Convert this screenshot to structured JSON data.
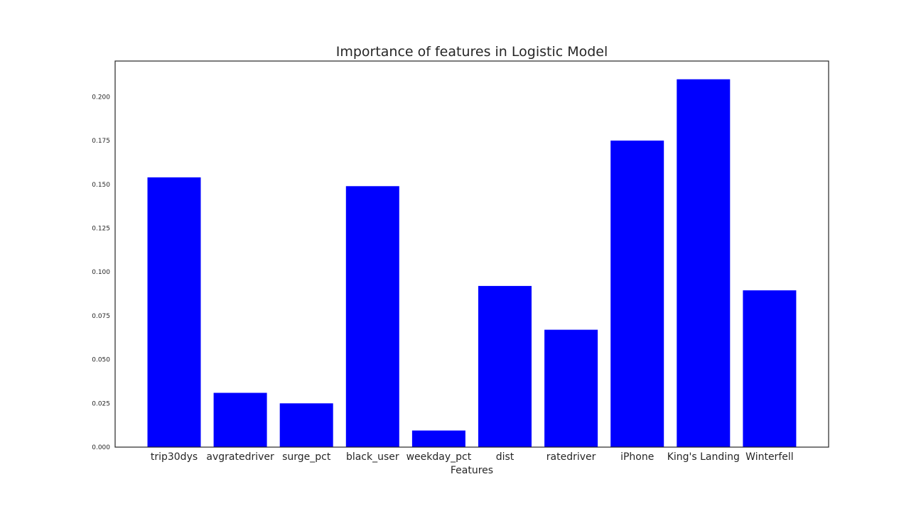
{
  "chart_data": {
    "type": "bar",
    "title": "Importance of features in Logistic Model",
    "xlabel": "Features",
    "ylabel": "",
    "categories": [
      "trip30dys",
      "avgratedriver",
      "surge_pct",
      "black_user",
      "weekday_pct",
      "dist",
      "ratedriver",
      "iPhone",
      "King's Landing",
      "Winterfell"
    ],
    "values": [
      0.154,
      0.031,
      0.025,
      0.149,
      0.0095,
      0.092,
      0.067,
      0.175,
      0.21,
      0.0895
    ],
    "ylim": [
      0,
      0.22
    ],
    "yticks": [
      "0.000",
      "0.025",
      "0.050",
      "0.075",
      "0.100",
      "0.125",
      "0.150",
      "0.175",
      "0.200"
    ],
    "bar_color": "#0000ff",
    "grid": false
  }
}
